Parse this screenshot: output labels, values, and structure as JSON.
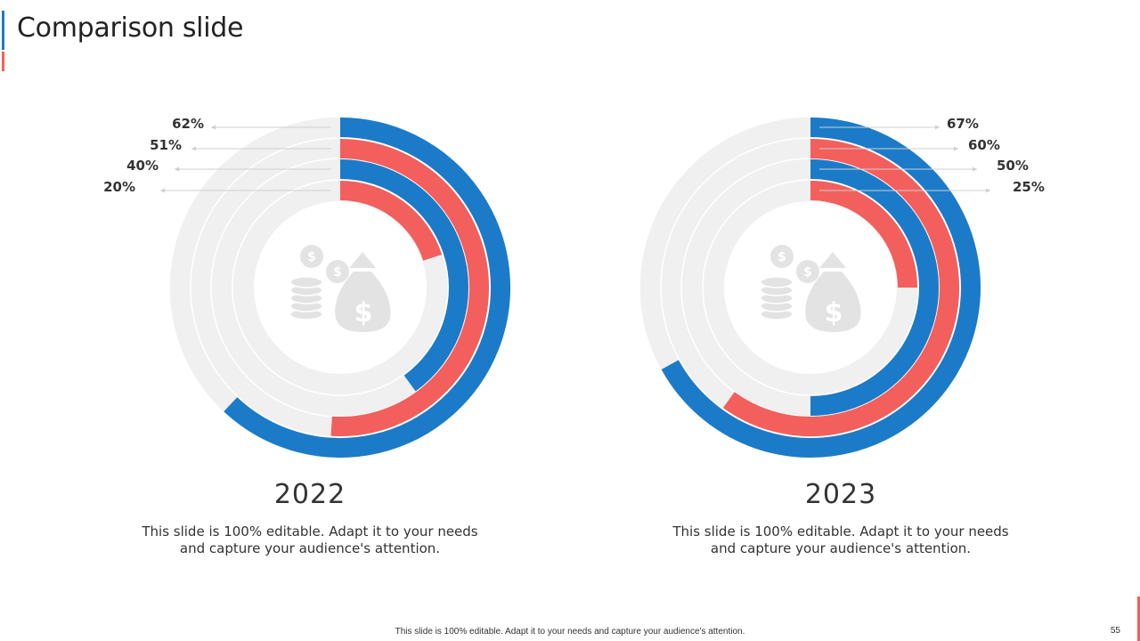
{
  "header": {
    "title": "Comparison slide"
  },
  "colors": {
    "blue": "#1b7bc8",
    "red": "#f25f5c",
    "track": "#f0f0f0",
    "icon": "#e3e3e3"
  },
  "chart_data": [
    {
      "type": "radial-bar",
      "year": "2022",
      "description_line1": "This slide is 100% editable. Adapt it to your needs",
      "description_line2": "and capture your audience's attention.",
      "rings": [
        {
          "label": "62%",
          "value": 62,
          "color": "blue"
        },
        {
          "label": "51%",
          "value": 51,
          "color": "red"
        },
        {
          "label": "40%",
          "value": 40,
          "color": "blue"
        },
        {
          "label": "20%",
          "value": 20,
          "color": "red"
        }
      ],
      "label_side": "left"
    },
    {
      "type": "radial-bar",
      "year": "2023",
      "description_line1": "This slide is 100% editable. Adapt it to your needs",
      "description_line2": "and capture your audience's attention.",
      "rings": [
        {
          "label": "67%",
          "value": 67,
          "color": "blue"
        },
        {
          "label": "60%",
          "value": 60,
          "color": "red"
        },
        {
          "label": "50%",
          "value": 50,
          "color": "blue"
        },
        {
          "label": "25%",
          "value": 25,
          "color": "red"
        }
      ],
      "label_side": "right"
    }
  ],
  "footer": {
    "text": "This slide is 100% editable.  Adapt it to your needs and capture your audience's attention.",
    "page": "55"
  }
}
